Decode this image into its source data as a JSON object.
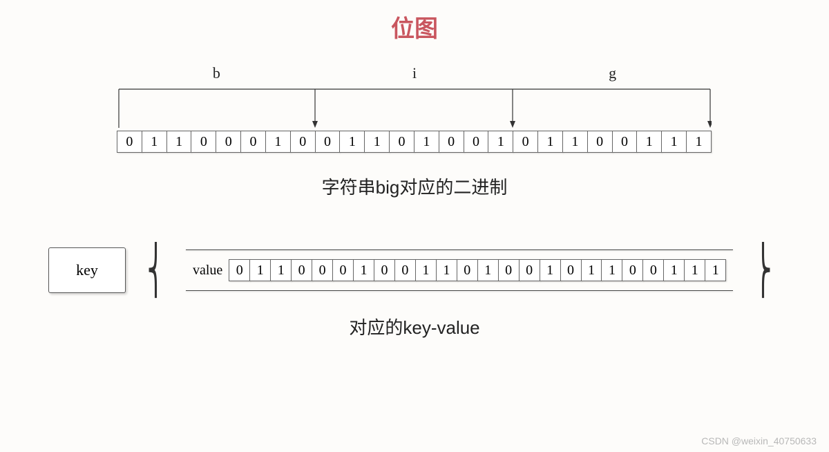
{
  "title": {
    "text": "位图",
    "color": "#c9565f"
  },
  "chars": [
    "b",
    "i",
    "g"
  ],
  "bits": [
    "0",
    "1",
    "1",
    "0",
    "0",
    "0",
    "1",
    "0",
    "0",
    "1",
    "1",
    "0",
    "1",
    "0",
    "0",
    "1",
    "0",
    "1",
    "1",
    "0",
    "0",
    "1",
    "1",
    "1"
  ],
  "caption1": "字符串big对应的二进制",
  "kv": {
    "key_label": "key",
    "value_label": "value",
    "bits": [
      "0",
      "1",
      "1",
      "0",
      "0",
      "0",
      "1",
      "0",
      "0",
      "1",
      "1",
      "0",
      "1",
      "0",
      "0",
      "1",
      "0",
      "1",
      "1",
      "0",
      "0",
      "1",
      "1",
      "1"
    ]
  },
  "caption2": "对应的key-value",
  "watermark": "CSDN @weixin_40750633",
  "style": {
    "border_color": "#666666",
    "text_color": "#222222",
    "bg": "#fdfcfa",
    "cell_font": "Georgia, serif",
    "cell_fontsize": 20,
    "caption_fontsize": 26,
    "title_fontsize": 34
  }
}
